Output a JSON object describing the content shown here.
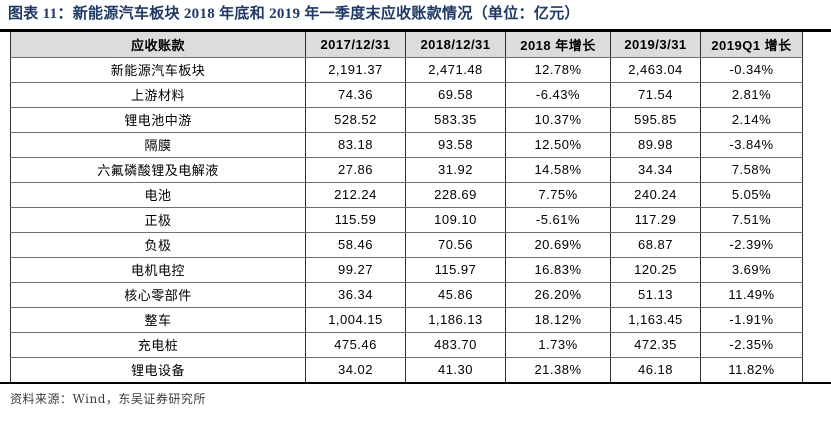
{
  "title": "图表 11：新能源汽车板块 2018 年底和 2019 年一季度末应收账款情况（单位：亿元）",
  "table": {
    "columns": [
      "应收账款",
      "2017/12/31",
      "2018/12/31",
      "2018 年增长",
      "2019/3/31",
      "2019Q1 增长"
    ],
    "rows": [
      [
        "新能源汽车板块",
        "2,191.37",
        "2,471.48",
        "12.78%",
        "2,463.04",
        "-0.34%"
      ],
      [
        "上游材料",
        "74.36",
        "69.58",
        "-6.43%",
        "71.54",
        "2.81%"
      ],
      [
        "锂电池中游",
        "528.52",
        "583.35",
        "10.37%",
        "595.85",
        "2.14%"
      ],
      [
        "隔膜",
        "83.18",
        "93.58",
        "12.50%",
        "89.98",
        "-3.84%"
      ],
      [
        "六氟磷酸锂及电解液",
        "27.86",
        "31.92",
        "14.58%",
        "34.34",
        "7.58%"
      ],
      [
        "电池",
        "212.24",
        "228.69",
        "7.75%",
        "240.24",
        "5.05%"
      ],
      [
        "正极",
        "115.59",
        "109.10",
        "-5.61%",
        "117.29",
        "7.51%"
      ],
      [
        "负极",
        "58.46",
        "70.56",
        "20.69%",
        "68.87",
        "-2.39%"
      ],
      [
        "电机电控",
        "99.27",
        "115.97",
        "16.83%",
        "120.25",
        "3.69%"
      ],
      [
        "核心零部件",
        "36.34",
        "45.86",
        "26.20%",
        "51.13",
        "11.49%"
      ],
      [
        "整车",
        "1,004.15",
        "1,186.13",
        "18.12%",
        "1,163.45",
        "-1.91%"
      ],
      [
        "充电桩",
        "475.46",
        "483.70",
        "1.73%",
        "472.35",
        "-2.35%"
      ],
      [
        "锂电设备",
        "34.02",
        "41.30",
        "21.38%",
        "46.18",
        "11.82%"
      ]
    ]
  },
  "footer": {
    "source_label": "资料来源：Wind，东吴证券研究所"
  },
  "colors": {
    "title": "#1F3864",
    "header_bg": "#DCDCDC",
    "rule": "#000000"
  }
}
